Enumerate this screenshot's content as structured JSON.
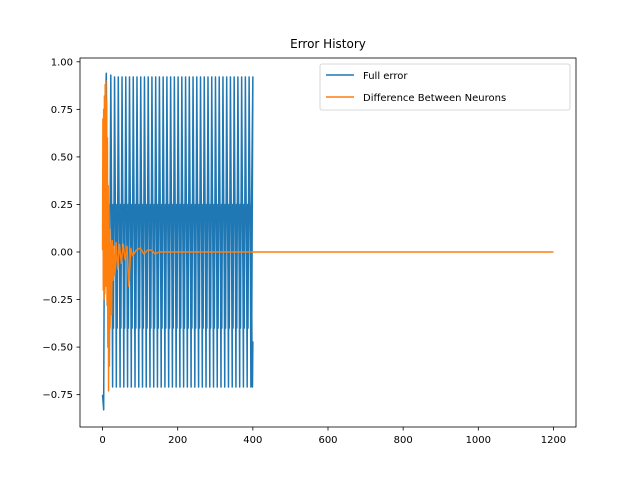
{
  "chart_data": {
    "type": "line",
    "title": "Error History",
    "xlabel": "",
    "ylabel": "",
    "xlim": [
      -60,
      1260
    ],
    "ylim": [
      -0.92,
      1.02
    ],
    "xticks": [
      0,
      200,
      400,
      600,
      800,
      1000,
      1200
    ],
    "yticks": [
      -0.75,
      -0.5,
      -0.25,
      0.0,
      0.25,
      0.5,
      0.75,
      1.0
    ],
    "xtick_labels": [
      "0",
      "200",
      "400",
      "600",
      "800",
      "1000",
      "1200"
    ],
    "ytick_labels": [
      "−0.75",
      "−0.50",
      "−0.25",
      "0.00",
      "0.25",
      "0.50",
      "0.75",
      "1.00"
    ],
    "grid": false,
    "legend_position": "top-right",
    "series": [
      {
        "name": "Full error",
        "color": "#1f77b4",
        "envelope": {
          "x_start": 0,
          "x_end": 400,
          "cycles": 40,
          "max": 0.92,
          "min": -0.71,
          "end_value": -0.47
        },
        "initial_points": [
          [
            0,
            -0.75
          ],
          [
            3,
            -0.83
          ],
          [
            6,
            0.72
          ],
          [
            10,
            0.94
          ],
          [
            14,
            -0.25
          ],
          [
            18,
            -0.6
          ],
          [
            22,
            0.93
          ]
        ]
      },
      {
        "name": "Difference Between Neurons",
        "color": "#ff7f0e",
        "x_range": [
          0,
          1200
        ],
        "settle_value": 0.0,
        "transient_points": [
          [
            0,
            0.01
          ],
          [
            1,
            0.7
          ],
          [
            2,
            -0.2
          ],
          [
            3,
            0.75
          ],
          [
            4,
            -0.25
          ],
          [
            5,
            0.82
          ],
          [
            6,
            -0.22
          ],
          [
            7,
            0.88
          ],
          [
            8,
            -0.18
          ],
          [
            9,
            0.9
          ],
          [
            10,
            -0.1
          ],
          [
            11,
            0.8
          ],
          [
            12,
            -0.28
          ],
          [
            13,
            0.6
          ],
          [
            14,
            -0.5
          ],
          [
            15,
            0.35
          ],
          [
            16,
            -0.73
          ],
          [
            17,
            0.25
          ],
          [
            18,
            -0.6
          ],
          [
            19,
            0.12
          ],
          [
            20,
            -0.4
          ],
          [
            22,
            0.05
          ],
          [
            24,
            -0.33
          ],
          [
            26,
            0.06
          ],
          [
            28,
            -0.15
          ],
          [
            30,
            0.03
          ],
          [
            33,
            -0.12
          ],
          [
            36,
            0.05
          ],
          [
            40,
            -0.09
          ],
          [
            45,
            0.04
          ],
          [
            50,
            -0.06
          ],
          [
            55,
            0.04
          ],
          [
            60,
            -0.04
          ],
          [
            65,
            0.03
          ],
          [
            70,
            -0.18
          ],
          [
            75,
            0.02
          ],
          [
            80,
            -0.02
          ],
          [
            90,
            0.01
          ],
          [
            100,
            0.02
          ],
          [
            110,
            -0.01
          ],
          [
            120,
            0.01
          ],
          [
            130,
            0.01
          ],
          [
            140,
            -0.01
          ],
          [
            150,
            0.0
          ],
          [
            170,
            0.0
          ],
          [
            200,
            0.0
          ]
        ]
      }
    ]
  }
}
